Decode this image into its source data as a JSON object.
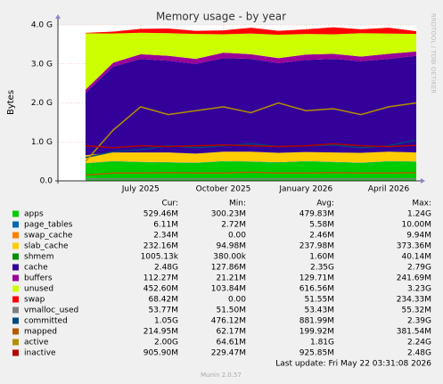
{
  "chart_data": {
    "type": "area",
    "title": "Memory usage - by year",
    "y_label": "Bytes",
    "side_note": "RRDTOOL / TOBI OETIKER",
    "x": [
      "2025-05",
      "2025-06",
      "2025-07",
      "2025-08",
      "2025-09",
      "2025-10",
      "2025-11",
      "2025-12",
      "2026-01",
      "2026-02",
      "2026-03",
      "2026-04",
      "2026-05"
    ],
    "xlim": [
      "2025-04",
      "2026-05"
    ],
    "xticks": [
      {
        "value": "2025-07",
        "label": "July 2025"
      },
      {
        "value": "2025-10",
        "label": "October 2025"
      },
      {
        "value": "2026-01",
        "label": "January 2026"
      },
      {
        "value": "2026-04",
        "label": "April 2026"
      }
    ],
    "ylim": [
      0,
      4
    ],
    "yticks": [
      {
        "value": 0,
        "label": "0.0"
      },
      {
        "value": 1,
        "label": "1.0 G"
      },
      {
        "value": 2,
        "label": "2.0 G"
      },
      {
        "value": 3,
        "label": "3.0 G"
      },
      {
        "value": 4,
        "label": "4.0 G"
      }
    ],
    "grid": true,
    "stat_header": [
      "Cur:",
      "Min:",
      "Avg:",
      "Max:"
    ],
    "series": [
      {
        "name": "apps",
        "color": "#00CC00",
        "style": "area",
        "values": [
          0.45,
          0.5,
          0.48,
          0.47,
          0.46,
          0.5,
          0.49,
          0.47,
          0.5,
          0.48,
          0.46,
          0.5,
          0.49
        ],
        "stats": [
          "529.46M",
          "300.23M",
          "479.83M",
          "1.24G"
        ]
      },
      {
        "name": "page_tables",
        "color": "#0066B3",
        "style": "area",
        "values": [
          0.005,
          0.006,
          0.006,
          0.006,
          0.006,
          0.006,
          0.006,
          0.006,
          0.006,
          0.006,
          0.006,
          0.006,
          0.006
        ],
        "stats": [
          "6.11M",
          "2.72M",
          "5.58M",
          "10.00M"
        ]
      },
      {
        "name": "swap_cache",
        "color": "#FF8000",
        "style": "area",
        "values": [
          0.001,
          0.002,
          0.003,
          0.002,
          0.002,
          0.003,
          0.002,
          0.002,
          0.003,
          0.002,
          0.002,
          0.002,
          0.002
        ],
        "stats": [
          "2.34M",
          "0.00",
          "2.46M",
          "9.94M"
        ]
      },
      {
        "name": "slab_cache",
        "color": "#FFCC00",
        "style": "area",
        "values": [
          0.2,
          0.22,
          0.24,
          0.25,
          0.23,
          0.24,
          0.25,
          0.24,
          0.23,
          0.24,
          0.25,
          0.24,
          0.23
        ],
        "stats": [
          "232.16M",
          "94.98M",
          "237.98M",
          "373.36M"
        ]
      },
      {
        "name": "shmem",
        "color": "#008F00",
        "style": "area",
        "values": [
          0.001,
          0.001,
          0.001,
          0.001,
          0.001,
          0.001,
          0.001,
          0.001,
          0.001,
          0.001,
          0.001,
          0.001,
          0.001
        ],
        "stats": [
          "1005.13k",
          "380.00k",
          "1.60M",
          "40.14M"
        ]
      },
      {
        "name": "cache",
        "color": "#330099",
        "style": "area",
        "values": [
          1.6,
          2.2,
          2.4,
          2.35,
          2.3,
          2.4,
          2.38,
          2.3,
          2.36,
          2.4,
          2.35,
          2.38,
          2.48
        ],
        "stats": [
          "2.48G",
          "127.86M",
          "2.35G",
          "2.79G"
        ]
      },
      {
        "name": "buffers",
        "color": "#990099",
        "style": "area",
        "values": [
          0.08,
          0.1,
          0.12,
          0.13,
          0.13,
          0.14,
          0.12,
          0.13,
          0.14,
          0.13,
          0.12,
          0.13,
          0.11
        ],
        "stats": [
          "112.27M",
          "21.21M",
          "129.71M",
          "241.69M"
        ]
      },
      {
        "name": "unused",
        "color": "#CCFF00",
        "style": "area",
        "values": [
          1.45,
          0.75,
          0.55,
          0.58,
          0.64,
          0.47,
          0.53,
          0.6,
          0.53,
          0.5,
          0.6,
          0.52,
          0.45
        ],
        "stats": [
          "452.60M",
          "103.84M",
          "616.56M",
          "3.23G"
        ]
      },
      {
        "name": "swap",
        "color": "#FF0000",
        "style": "area",
        "values": [
          0.01,
          0.05,
          0.1,
          0.12,
          0.08,
          0.1,
          0.15,
          0.1,
          0.12,
          0.18,
          0.1,
          0.15,
          0.07
        ],
        "stats": [
          "68.42M",
          "0.00",
          "51.55M",
          "234.33M"
        ]
      },
      {
        "name": "vmalloc_used",
        "color": "#808080",
        "style": "line",
        "values": [
          0.05,
          0.05,
          0.05,
          0.05,
          0.05,
          0.05,
          0.05,
          0.05,
          0.05,
          0.05,
          0.05,
          0.05,
          0.05
        ],
        "stats": [
          "53.77M",
          "51.50M",
          "53.43M",
          "55.32M"
        ]
      },
      {
        "name": "committed",
        "color": "#00487D",
        "style": "line",
        "values": [
          0.6,
          0.75,
          0.8,
          0.9,
          0.85,
          0.9,
          0.95,
          0.88,
          0.9,
          0.92,
          0.85,
          0.9,
          1.05
        ],
        "stats": [
          "1.05G",
          "476.12M",
          "881.99M",
          "2.39G"
        ]
      },
      {
        "name": "mapped",
        "color": "#B35A00",
        "style": "line",
        "values": [
          0.15,
          0.2,
          0.2,
          0.21,
          0.2,
          0.2,
          0.22,
          0.2,
          0.2,
          0.21,
          0.2,
          0.2,
          0.21
        ],
        "stats": [
          "214.95M",
          "62.17M",
          "199.92M",
          "381.54M"
        ]
      },
      {
        "name": "active",
        "color": "#B38F00",
        "style": "line",
        "values": [
          0.5,
          1.3,
          1.9,
          1.7,
          1.8,
          1.9,
          1.75,
          2.0,
          1.8,
          1.85,
          1.7,
          1.9,
          2.0
        ],
        "stats": [
          "2.00G",
          "64.61M",
          "1.81G",
          "2.24G"
        ]
      },
      {
        "name": "inactive",
        "color": "#B30000",
        "style": "line",
        "values": [
          0.9,
          0.85,
          0.9,
          0.88,
          0.9,
          0.92,
          0.9,
          0.88,
          0.9,
          0.95,
          0.9,
          0.88,
          0.91
        ],
        "stats": [
          "905.90M",
          "229.47M",
          "925.85M",
          "2.48G"
        ]
      }
    ],
    "last_update": "Last update: Fri May 22 03:31:08 2026",
    "footer": "Munin 2.0.57"
  }
}
